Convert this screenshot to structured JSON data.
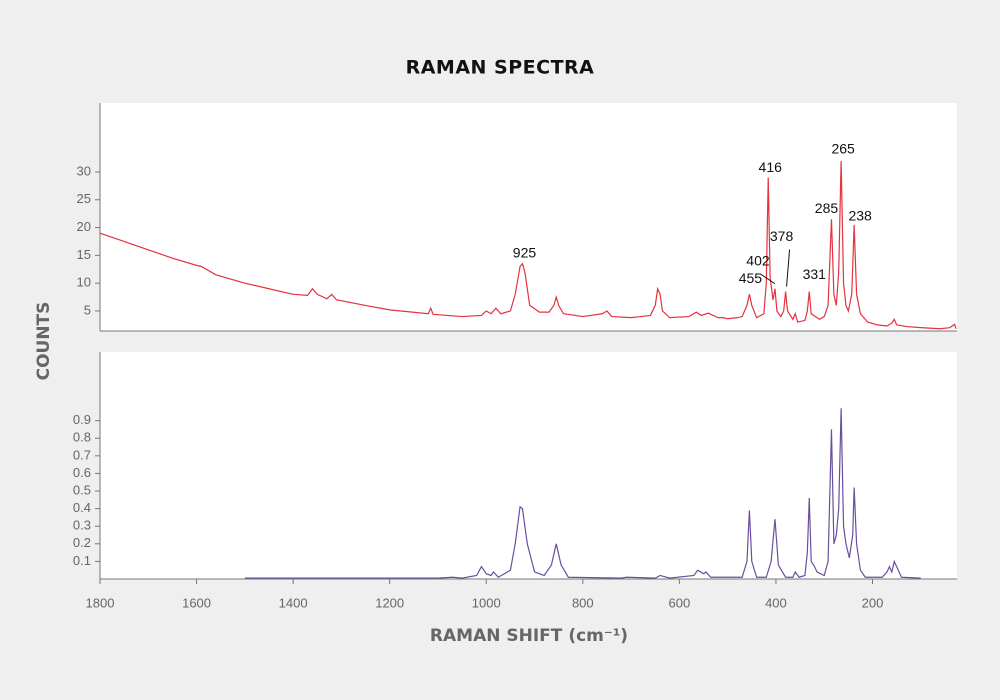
{
  "chart_data": [
    {
      "type": "line",
      "title": "RAMAN SPECTRA",
      "ylabel": "COUNTS",
      "color": "#e5323d",
      "xlim": [
        1800,
        25
      ],
      "ylim": [
        1.4,
        42.4
      ],
      "yticks": [
        5,
        10,
        15,
        20,
        25,
        30
      ],
      "x": [
        1800,
        1750,
        1700,
        1650,
        1600,
        1590,
        1560,
        1500,
        1450,
        1400,
        1370,
        1360,
        1350,
        1330,
        1320,
        1310,
        1250,
        1200,
        1120,
        1115,
        1110,
        1050,
        1010,
        1000,
        990,
        980,
        970,
        950,
        940,
        930,
        925,
        920,
        910,
        890,
        870,
        860,
        855,
        850,
        840,
        800,
        760,
        750,
        740,
        700,
        660,
        650,
        645,
        640,
        635,
        620,
        580,
        565,
        555,
        540,
        520,
        510,
        500,
        480,
        470,
        460,
        455,
        450,
        440,
        425,
        420,
        416,
        412,
        406,
        402,
        398,
        390,
        384,
        380,
        376,
        365,
        360,
        355,
        340,
        335,
        331,
        327,
        310,
        300,
        292,
        285,
        280,
        275,
        270,
        265,
        260,
        255,
        250,
        243,
        238,
        233,
        225,
        210,
        190,
        170,
        160,
        155,
        150,
        130,
        100,
        60,
        40,
        30,
        27
      ],
      "values": [
        19,
        17.5,
        16,
        14.5,
        13.2,
        13,
        11.5,
        10,
        9,
        8,
        7.8,
        9,
        8,
        7.2,
        8,
        7,
        6,
        5.2,
        4.5,
        5.5,
        4.4,
        4,
        4.2,
        5,
        4.5,
        5.5,
        4.5,
        5,
        8,
        13,
        13.5,
        12,
        6,
        4.8,
        4.8,
        6,
        7.5,
        6,
        4.5,
        4,
        4.5,
        5,
        4,
        3.8,
        4.2,
        6,
        9,
        8,
        5,
        3.8,
        4,
        4.8,
        4.2,
        4.6,
        3.8,
        3.8,
        3.6,
        3.8,
        4,
        6,
        8,
        6,
        3.8,
        4.5,
        10,
        29,
        11,
        7,
        9,
        5,
        4,
        5,
        8.5,
        5,
        3.5,
        4.5,
        3,
        3.3,
        5,
        8.5,
        4.5,
        3.5,
        4,
        6,
        21.5,
        8,
        6,
        12,
        32,
        10,
        6,
        5,
        8,
        20.5,
        8,
        4.5,
        3,
        2.5,
        2.3,
        2.8,
        3.5,
        2.5,
        2.2,
        2,
        1.8,
        2,
        2.6,
        1.8
      ],
      "annotations": [
        {
          "x": 925,
          "y": 13.5
        },
        {
          "x": 455,
          "y": 8
        },
        {
          "x": 416,
          "y": 29
        },
        {
          "x": 402,
          "y": 9
        },
        {
          "x": 378,
          "y": 8.5
        },
        {
          "x": 331,
          "y": 8.5
        },
        {
          "x": 285,
          "y": 21.5
        },
        {
          "x": 265,
          "y": 32
        },
        {
          "x": 238,
          "y": 20.5
        }
      ]
    },
    {
      "type": "line",
      "xlabel": "RAMAN SHIFT (cm⁻¹)",
      "color": "#6a4f9e",
      "xlim": [
        1800,
        25
      ],
      "ylim": [
        0,
        1.29
      ],
      "yticks": [
        0.1,
        0.2,
        0.3,
        0.4,
        0.5,
        0.6,
        0.7,
        0.8,
        0.9
      ],
      "xticks": [
        1800,
        1600,
        1400,
        1200,
        1000,
        800,
        600,
        400,
        200
      ],
      "x": [
        1500,
        1100,
        1070,
        1050,
        1020,
        1010,
        1000,
        990,
        985,
        975,
        950,
        940,
        930,
        925,
        915,
        900,
        880,
        865,
        855,
        845,
        830,
        720,
        710,
        650,
        640,
        620,
        570,
        562,
        550,
        545,
        535,
        510,
        470,
        460,
        455,
        450,
        440,
        420,
        410,
        402,
        395,
        380,
        365,
        360,
        352,
        340,
        335,
        331,
        327,
        320,
        315,
        300,
        292,
        285,
        280,
        275,
        270,
        265,
        260,
        255,
        248,
        241,
        238,
        233,
        225,
        215,
        180,
        170,
        165,
        160,
        155,
        150,
        140,
        100
      ],
      "values": [
        0.005,
        0.005,
        0.01,
        0.005,
        0.02,
        0.07,
        0.03,
        0.02,
        0.04,
        0.01,
        0.05,
        0.2,
        0.41,
        0.4,
        0.2,
        0.04,
        0.02,
        0.08,
        0.2,
        0.08,
        0.01,
        0.005,
        0.01,
        0.005,
        0.02,
        0.005,
        0.02,
        0.05,
        0.03,
        0.04,
        0.01,
        0.01,
        0.01,
        0.1,
        0.39,
        0.1,
        0.01,
        0.01,
        0.1,
        0.34,
        0.08,
        0.01,
        0.01,
        0.04,
        0.01,
        0.02,
        0.15,
        0.46,
        0.1,
        0.07,
        0.04,
        0.02,
        0.1,
        0.85,
        0.2,
        0.25,
        0.4,
        0.97,
        0.3,
        0.2,
        0.12,
        0.25,
        0.52,
        0.2,
        0.05,
        0.01,
        0.01,
        0.04,
        0.07,
        0.04,
        0.1,
        0.07,
        0.01,
        0.005
      ]
    }
  ]
}
